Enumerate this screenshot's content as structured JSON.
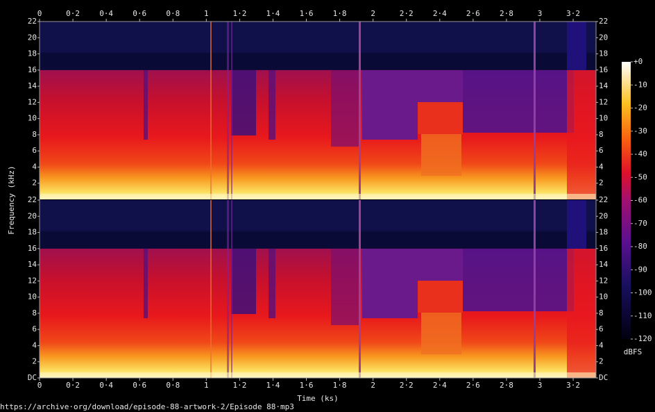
{
  "chart_data": {
    "type": "spectrogram",
    "x_label": "Time (ks)",
    "y_label": "Frequency (kHz)",
    "xlim": [
      0,
      3.337
    ],
    "xticks": [
      0,
      {
        "value": 0.2,
        "label": "0·2"
      },
      {
        "value": 0.4,
        "label": "0·4"
      },
      {
        "value": 0.6,
        "label": "0·6"
      },
      {
        "value": 0.8,
        "label": "0·8"
      },
      1,
      {
        "value": 1.2,
        "label": "1·2"
      },
      {
        "value": 1.4,
        "label": "1·4"
      },
      {
        "value": 1.6,
        "label": "1·6"
      },
      {
        "value": 1.8,
        "label": "1·8"
      },
      2,
      {
        "value": 2.2,
        "label": "2·2"
      },
      {
        "value": 2.4,
        "label": "2·4"
      },
      {
        "value": 2.6,
        "label": "2·6"
      },
      {
        "value": 2.8,
        "label": "2·8"
      },
      3,
      {
        "value": 3.2,
        "label": "3·2"
      }
    ],
    "channels": [
      {
        "ylim": [
          0,
          22
        ],
        "yticks": [
          2,
          4,
          6,
          8,
          10,
          12,
          14,
          16,
          18,
          20,
          22
        ]
      },
      {
        "ylim": [
          0,
          22
        ],
        "yticks": [
          {
            "value": 0,
            "label": "DC"
          },
          2,
          4,
          6,
          8,
          10,
          12,
          14,
          16,
          18,
          20,
          22
        ]
      }
    ],
    "colorbar": {
      "label": "dBFS",
      "lim": [
        -120,
        0
      ],
      "ticks": [
        {
          "value": 0,
          "label": "+0"
        },
        -10,
        -20,
        -30,
        -40,
        -50,
        -60,
        -70,
        -80,
        -90,
        -100,
        -110,
        -120
      ]
    },
    "source": "https://archive·org/download/episode-88-artwork-2/Episode 88·mp3"
  }
}
